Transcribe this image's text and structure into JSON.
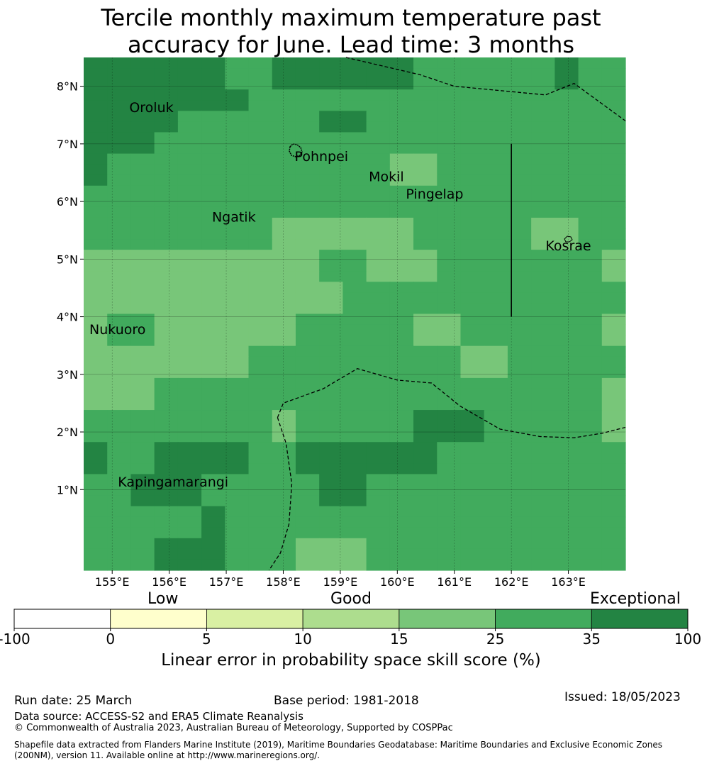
{
  "title_line1": "Tercile monthly maximum temperature past",
  "title_line2": "accuracy for June. Lead time: 3 months",
  "map": {
    "lon_range": [
      154.5,
      164.0
    ],
    "lat_range": [
      -0.4,
      8.5
    ],
    "x_ticks": [
      "155°E",
      "156°E",
      "157°E",
      "158°E",
      "159°E",
      "160°E",
      "161°E",
      "162°E",
      "163°E"
    ],
    "y_ticks": [
      "8°N",
      "7°N",
      "6°N",
      "5°N",
      "4°N",
      "3°N",
      "2°N",
      "1°N"
    ],
    "places": [
      {
        "name": "Oroluk",
        "lon": 155.3,
        "lat": 7.55
      },
      {
        "name": "Pohnpei",
        "lon": 158.2,
        "lat": 6.7
      },
      {
        "name": "Mokil",
        "lon": 159.5,
        "lat": 6.35
      },
      {
        "name": "Pingelap",
        "lon": 160.15,
        "lat": 6.05
      },
      {
        "name": "Ngatik",
        "lon": 156.75,
        "lat": 5.65
      },
      {
        "name": "Kosrae",
        "lon": 162.6,
        "lat": 5.15
      },
      {
        "name": "Nukuoro",
        "lon": 154.6,
        "lat": 3.7
      },
      {
        "name": "Kapingamarangi",
        "lon": 155.1,
        "lat": 1.05
      }
    ],
    "category_colors": [
      "#ffffff",
      "#ffffcc",
      "#d9f0a3",
      "#addd8e",
      "#78c679",
      "#41ab5d",
      "#238443"
    ],
    "grid_rows": [
      "66666655666666555555655",
      "66666655666666555555655",
      "66666655666666555555655",
      "66666665555555555555555",
      "66666665555555555555555",
      "66665555556655555555555",
      "66665555556655555555555",
      "66655555555555555555555",
      "66655555555555555555555",
      "65555555555554455555555",
      "65555555555554455555555",
      "65555555555554455555555",
      "55555555555555555555555",
      "55555555555555555555555",
      "55555555555555555555555",
      "55555555444444555554455",
      "55555555444444555554455",
      "55555555444444555554455",
      "44444444445544455555554",
      "44444444445544455555554",
      "44444444445544455555554",
      "44444444444555555555555",
      "44444444444555555555555",
      "44444444444555555555555",
      "45544444455555445555554",
      "45544444455555445555554",
      "45544444455555445555554",
      "44444445555555554455555",
      "44444445555555554455555",
      "44444445555555554455555",
      "44455555555555555555554",
      "44455555555555555555554",
      "44455555555555555555554",
      "55555555455555666555554",
      "55555555455555666555554",
      "55555555455555666555554",
      "65566665566666655555555",
      "65566665566666655555555",
      "65566665566666655555555",
      "55666555556655555555555",
      "55666555556655555555555",
      "55666555556655555555555",
      "55555655555555555555555",
      "55555655555555555555555",
      "55555655555555555555555",
      "55566655544455555555555",
      "55566655544455555555555",
      "55566655544455555555555"
    ],
    "boundaries": [
      [
        [
          159.1,
          8.5
        ],
        [
          160.4,
          8.2
        ],
        [
          161.0,
          8.0
        ],
        [
          162.6,
          7.85
        ],
        [
          163.1,
          8.05
        ],
        [
          164.0,
          7.4
        ]
      ],
      [
        [
          157.9,
          2.25
        ],
        [
          158.0,
          2.5
        ],
        [
          158.7,
          2.75
        ],
        [
          159.3,
          3.1
        ],
        [
          160.0,
          2.9
        ],
        [
          160.6,
          2.85
        ],
        [
          161.1,
          2.45
        ],
        [
          161.8,
          2.05
        ],
        [
          162.5,
          1.92
        ],
        [
          163.1,
          1.9
        ],
        [
          163.6,
          1.98
        ],
        [
          164.0,
          2.08
        ]
      ],
      [
        [
          157.9,
          2.25
        ],
        [
          158.05,
          1.8
        ],
        [
          158.15,
          1.1
        ],
        [
          158.1,
          0.4
        ],
        [
          157.95,
          -0.1
        ],
        [
          157.75,
          -0.4
        ]
      ]
    ],
    "solid_line": [
      [
        162.0,
        7.0
      ],
      [
        162.0,
        4.0
      ]
    ]
  },
  "colorbar": {
    "bounds": [
      "-100",
      "0",
      "5",
      "10",
      "15",
      "25",
      "35",
      "100"
    ],
    "colors": [
      "#ffffff",
      "#ffffcc",
      "#d9f0a3",
      "#addd8e",
      "#78c679",
      "#41ab5d",
      "#238443"
    ],
    "top_labels": [
      "Low",
      "Good",
      "Exceptional"
    ],
    "label": "Linear error in probability space skill score (%)"
  },
  "footer": {
    "run_date": "Run date: 25 March",
    "base_period": "Base period: 1981-2018",
    "issued": "Issued: 18/05/2023",
    "data_source": "Data source: ACCESS-S2 and ERA5 Climate Reanalysis",
    "copyright": "© Commonwealth of Australia 2023, Australian Bureau of Meteorology, Supported by COSPPac",
    "shapefile": "Shapefile data extracted from Flanders Marine Institute (2019), Maritime Boundaries Geodatabase: Maritime Boundaries and Exclusive Economic Zones (200NM), version 11. Available online at http://www.marineregions.org/."
  }
}
